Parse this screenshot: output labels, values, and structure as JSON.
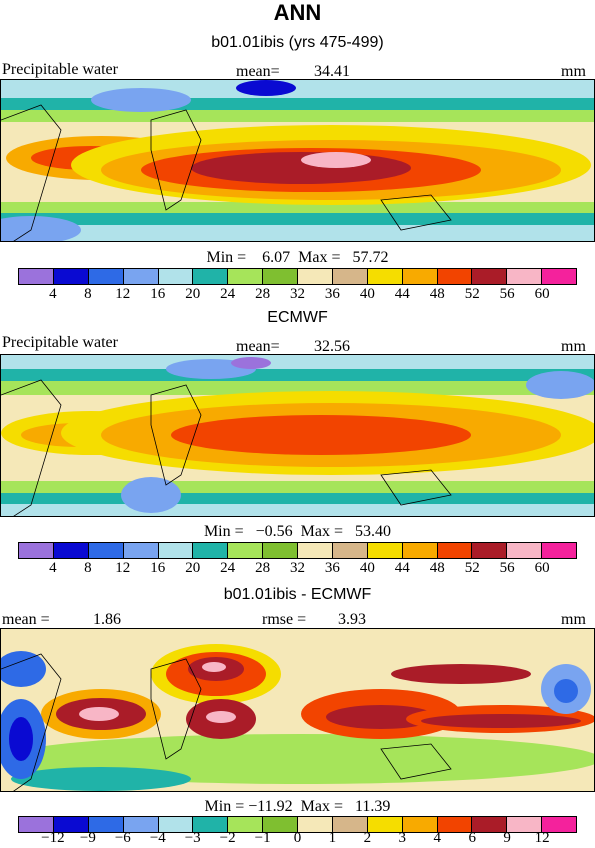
{
  "header": {
    "season": "ANN"
  },
  "palette": [
    "#9b72dc",
    "#0a0ad2",
    "#2e6ae6",
    "#79a4f0",
    "#b1e2ea",
    "#20b3a8",
    "#a6e45a",
    "#7fbf30",
    "#f5e8b8",
    "#d6b68a",
    "#f5dd00",
    "#f8aa00",
    "#f24400",
    "#aa1c28",
    "#f8b6c6",
    "#f4229c"
  ],
  "panels": [
    {
      "title": "b01.01ibis (yrs 475-499)",
      "field": "Precipitable water",
      "stat_label": "mean=",
      "stat_value": "34.41",
      "units": "mm",
      "minmax": "Min =    6.07  Max =   57.72",
      "ticks": [
        "4",
        "8",
        "12",
        "16",
        "20",
        "24",
        "28",
        "32",
        "36",
        "40",
        "44",
        "48",
        "52",
        "56",
        "60"
      ]
    },
    {
      "title": "ECMWF",
      "field": "Precipitable water",
      "stat_label": "mean=",
      "stat_value": "32.56",
      "units": "mm",
      "minmax": "Min =   −0.56  Max =   53.40",
      "ticks": [
        "4",
        "8",
        "12",
        "16",
        "20",
        "24",
        "28",
        "32",
        "36",
        "40",
        "44",
        "48",
        "52",
        "56",
        "60"
      ]
    },
    {
      "title": "b01.01ibis - ECMWF",
      "field": "mean =",
      "stat_label": "rmse =",
      "stat_value": "3.93",
      "mean_value": "1.86",
      "units": "mm",
      "minmax": "Min = −11.92  Max =   11.39",
      "ticks": [
        "−12",
        "−9",
        "−6",
        "−4",
        "−3",
        "−2",
        "−1",
        "0",
        "1",
        "2",
        "3",
        "4",
        "6",
        "9",
        "12"
      ]
    }
  ]
}
